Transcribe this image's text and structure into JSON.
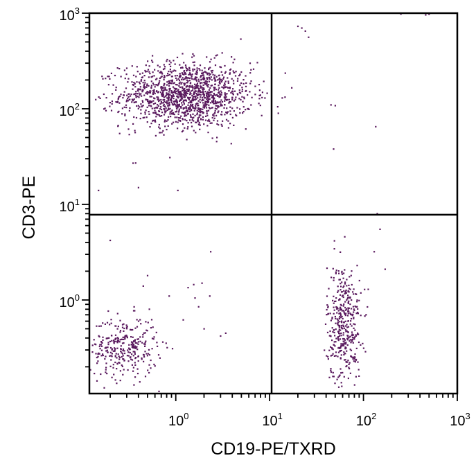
{
  "chart_data": {
    "type": "scatter",
    "xlabel": "CD19-PE/TXRD",
    "ylabel": "CD3-PE",
    "x_scale": "log",
    "y_scale": "log",
    "xlim": [
      0.12,
      1000
    ],
    "ylim": [
      0.105,
      1000
    ],
    "grid": false,
    "legend": "none",
    "point_color": "#5a1a5e",
    "x_ticks": [
      {
        "base": "10",
        "exp": "0",
        "value": 1
      },
      {
        "base": "10",
        "exp": "1",
        "value": 10
      },
      {
        "base": "10",
        "exp": "2",
        "value": 100
      },
      {
        "base": "10",
        "exp": "3",
        "value": 1000
      }
    ],
    "y_ticks": [
      {
        "base": "10",
        "exp": "0",
        "value": 1
      },
      {
        "base": "10",
        "exp": "1",
        "value": 10
      },
      {
        "base": "10",
        "exp": "2",
        "value": 100
      },
      {
        "base": "10",
        "exp": "3",
        "value": 1000
      }
    ],
    "quadrant_gates": {
      "x": 10.5,
      "y": 7.8
    },
    "clusters": [
      {
        "population": "CD3+ CD19-",
        "n": 1400,
        "x_center": 1.3,
        "y_center": 140,
        "x_spread_log10": 0.35,
        "y_spread_log10": 0.17
      },
      {
        "population": "CD3- CD19-",
        "n": 320,
        "x_center": 0.28,
        "y_center": 0.32,
        "x_spread_log10": 0.18,
        "y_spread_log10": 0.16
      },
      {
        "population": "CD3- CD19+",
        "n": 420,
        "x_center": 62,
        "y_center": 0.55,
        "x_spread_log10": 0.09,
        "y_spread_log10": 0.32
      }
    ],
    "outliers": [
      {
        "x": 22,
        "y": 700
      },
      {
        "x": 20,
        "y": 730
      },
      {
        "x": 24,
        "y": 650
      },
      {
        "x": 26,
        "y": 560
      },
      {
        "x": 45,
        "y": 110
      },
      {
        "x": 50,
        "y": 108
      },
      {
        "x": 48,
        "y": 38
      },
      {
        "x": 135,
        "y": 65
      },
      {
        "x": 250,
        "y": 980
      },
      {
        "x": 460,
        "y": 960
      },
      {
        "x": 500,
        "y": 975
      },
      {
        "x": 140,
        "y": 8.0
      },
      {
        "x": 150,
        "y": 5.5
      },
      {
        "x": 170,
        "y": 2.1
      },
      {
        "x": 130,
        "y": 3.2
      },
      {
        "x": 0.2,
        "y": 4.2
      },
      {
        "x": 0.5,
        "y": 1.8
      },
      {
        "x": 0.45,
        "y": 1.4
      },
      {
        "x": 0.85,
        "y": 1.1
      },
      {
        "x": 1.55,
        "y": 1.45
      },
      {
        "x": 1.9,
        "y": 1.5
      },
      {
        "x": 1.35,
        "y": 1.35
      },
      {
        "x": 2.3,
        "y": 1.1
      },
      {
        "x": 2.35,
        "y": 3.2
      },
      {
        "x": 1.6,
        "y": 1.05
      },
      {
        "x": 0.15,
        "y": 14
      },
      {
        "x": 0.4,
        "y": 15
      },
      {
        "x": 1.05,
        "y": 14
      },
      {
        "x": 0.35,
        "y": 27
      },
      {
        "x": 1.2,
        "y": 0.62
      },
      {
        "x": 2.0,
        "y": 0.5
      },
      {
        "x": 3.0,
        "y": 0.42
      },
      {
        "x": 3.4,
        "y": 0.45
      },
      {
        "x": 1.75,
        "y": 0.85
      }
    ]
  }
}
